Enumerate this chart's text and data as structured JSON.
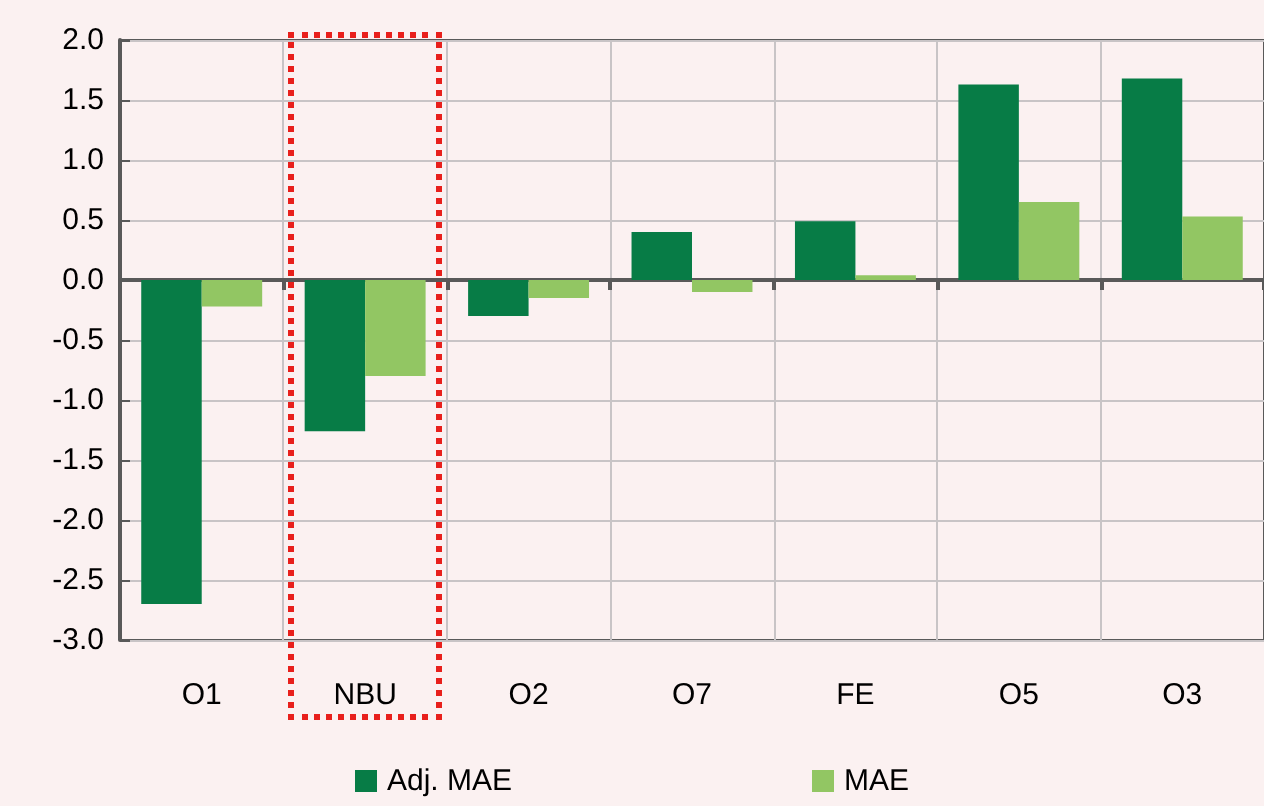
{
  "chart_data": {
    "type": "bar",
    "categories": [
      "O1",
      "NBU",
      "O2",
      "O7",
      "FE",
      "O5",
      "O3"
    ],
    "series": [
      {
        "name": "Adj. MAE",
        "color": "#077c46",
        "values": [
          -2.7,
          -1.26,
          -0.3,
          0.4,
          0.49,
          1.63,
          1.68
        ]
      },
      {
        "name": "MAE",
        "color": "#92c663",
        "values": [
          -0.22,
          -0.8,
          -0.15,
          -0.1,
          0.04,
          0.65,
          0.53
        ]
      }
    ],
    "ylim": [
      -3.0,
      2.0
    ],
    "yticks": [
      {
        "value": -3,
        "label": "-3.0"
      },
      {
        "value": -2.5,
        "label": "-2.5"
      },
      {
        "value": -2,
        "label": "-2.0"
      },
      {
        "value": -1.5,
        "label": "-1.5"
      },
      {
        "value": -1,
        "label": "-1.0"
      },
      {
        "value": -0.5,
        "label": "-0.5"
      },
      {
        "value": 0,
        "label": "0.0"
      },
      {
        "value": 0.5,
        "label": "0.5"
      },
      {
        "value": 1,
        "label": "1.0"
      },
      {
        "value": 1.5,
        "label": "1.5"
      },
      {
        "value": 2,
        "label": "2.0"
      }
    ],
    "grid": true,
    "legend": "bottom"
  }
}
